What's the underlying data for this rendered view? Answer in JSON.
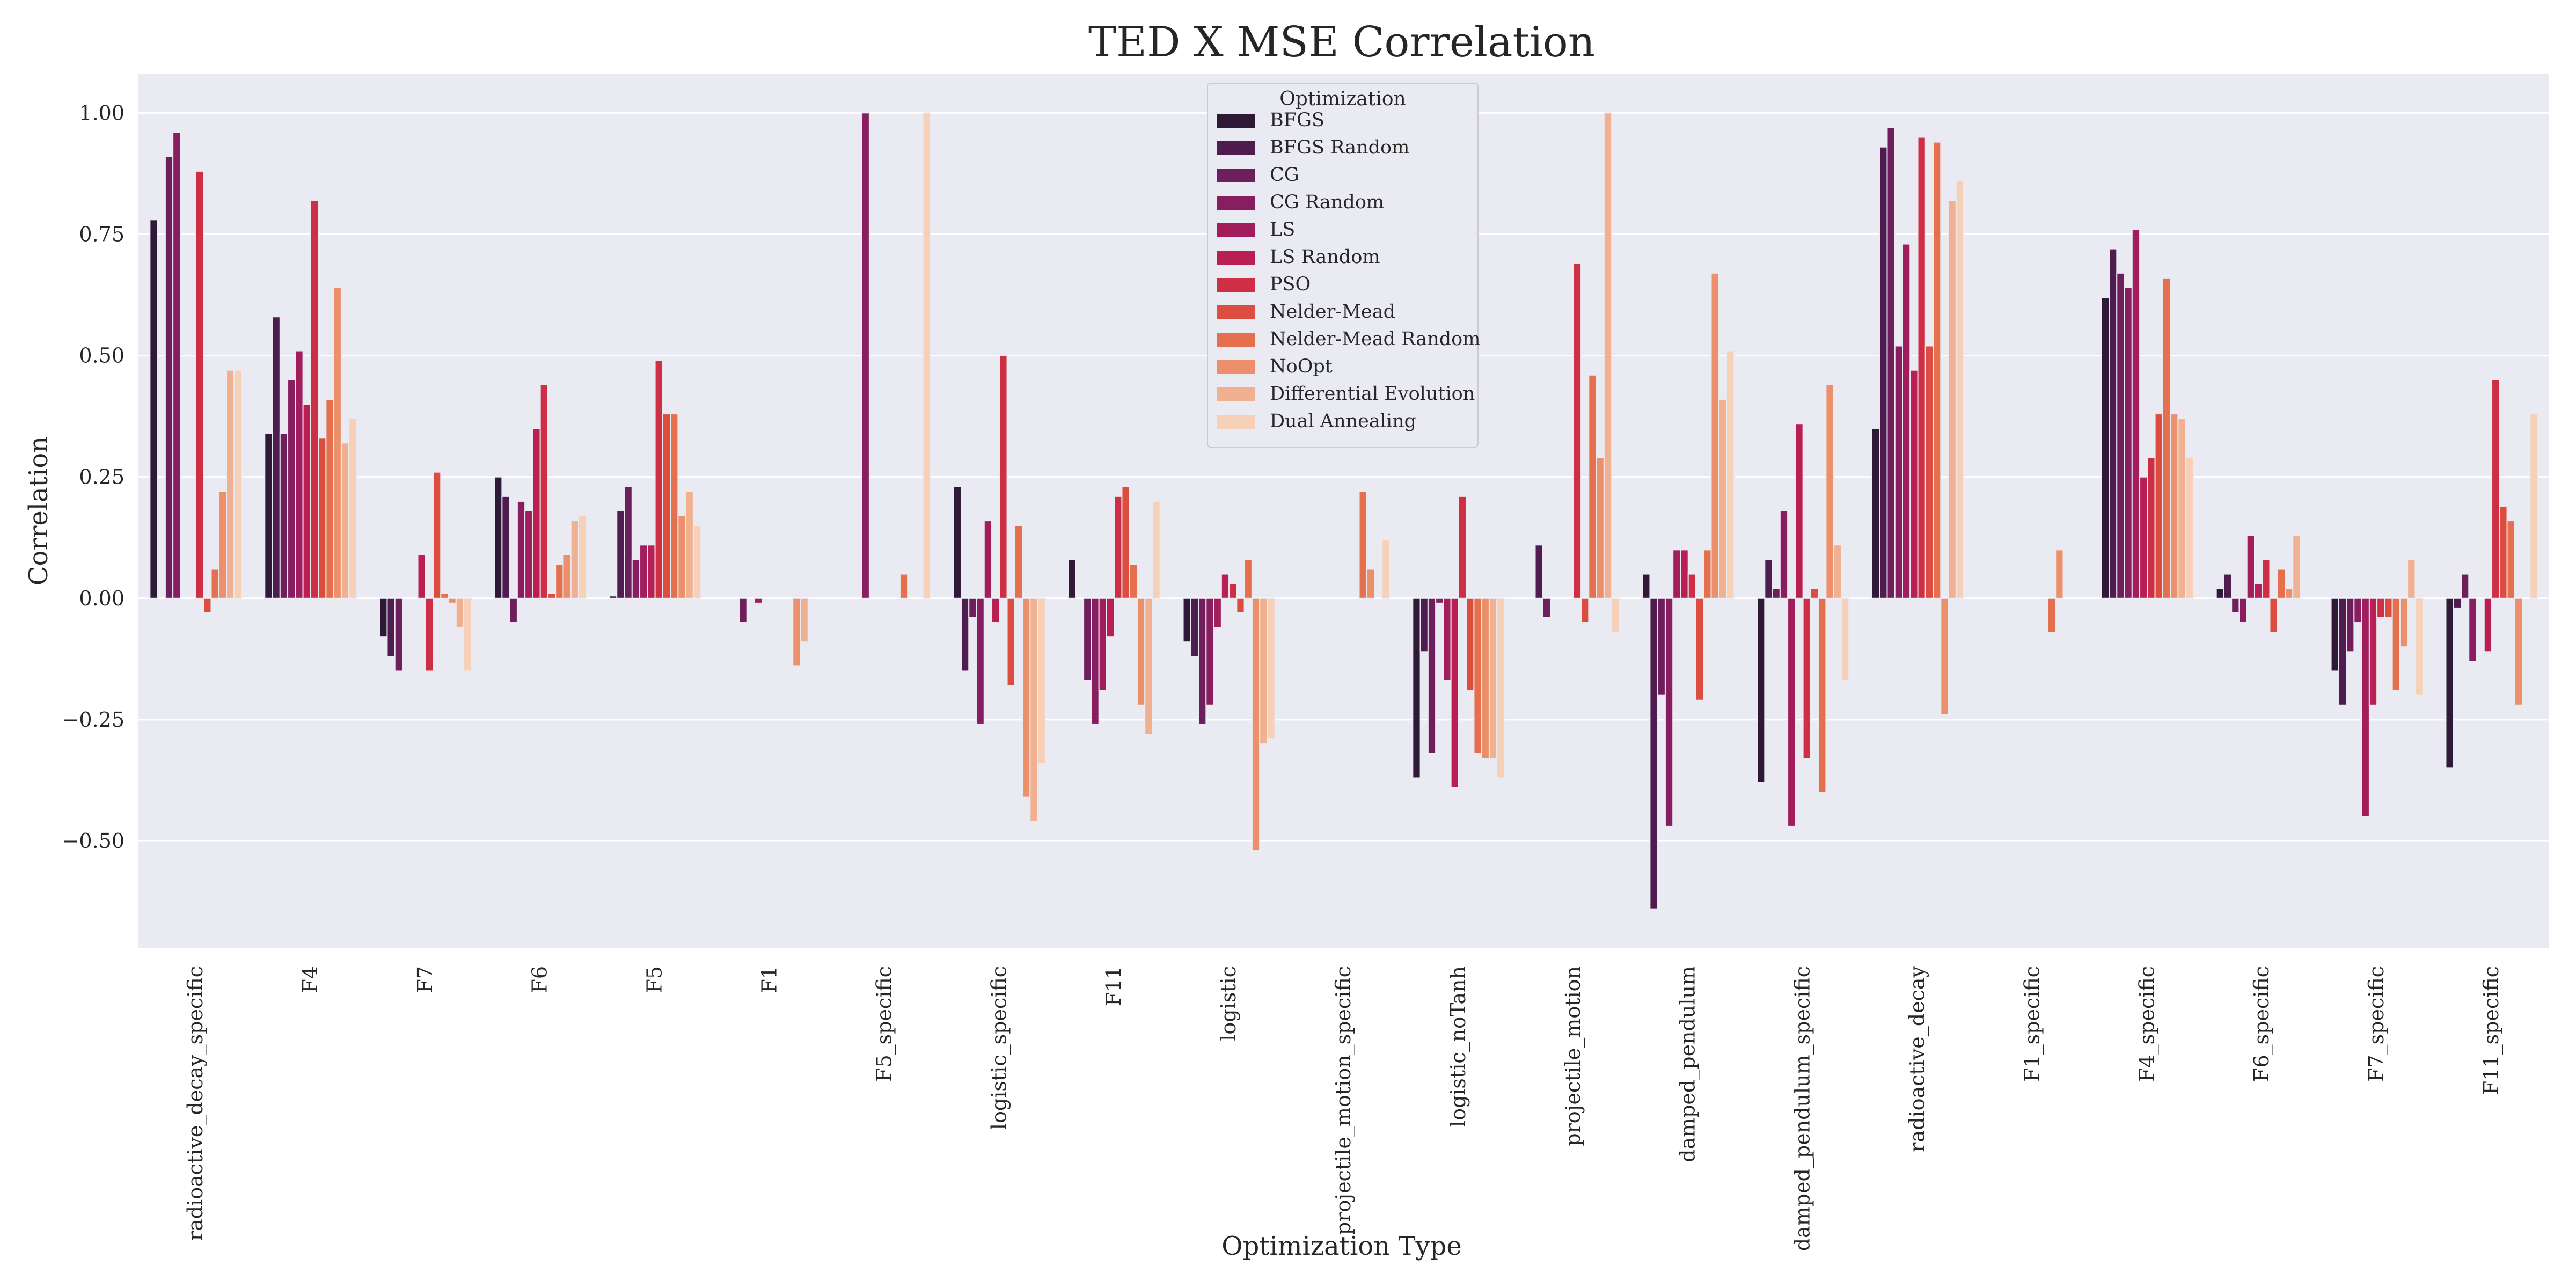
{
  "chart_data": {
    "type": "bar",
    "title": "TED X MSE Correlation",
    "xlabel": "Optimization Type",
    "ylabel": "Correlation",
    "ylim": [
      -0.72,
      1.08
    ],
    "yticks": [
      -0.5,
      -0.25,
      0.0,
      0.25,
      0.5,
      0.75,
      1.0
    ],
    "ytick_labels": [
      "−0.50",
      "−0.25",
      "0.00",
      "0.25",
      "0.50",
      "0.75",
      "1.00"
    ],
    "grid": true,
    "legend_title": "Optimization",
    "legend_position": "top-center",
    "categories": [
      "radioactive_decay_specific",
      "F4",
      "F7",
      "F6",
      "F5",
      "F1",
      "F5_specific",
      "logistic_specific",
      "F11",
      "logistic",
      "projectile_motion_specific",
      "logistic_noTanh",
      "projectile_motion",
      "damped_pendulum",
      "damped_pendulum_specific",
      "radioactive_decay",
      "F1_specific",
      "F4_specific",
      "F6_specific",
      "F7_specific",
      "F11_specific"
    ],
    "series": [
      {
        "name": "BFGS",
        "color": "#2e1a36",
        "values": [
          0.78,
          0.34,
          -0.08,
          0.25,
          0.005,
          0,
          0,
          0.23,
          0.08,
          -0.09,
          0,
          -0.37,
          0,
          0.05,
          -0.38,
          0.35,
          0,
          0.62,
          0.02,
          -0.15,
          -0.35
        ]
      },
      {
        "name": "BFGS Random",
        "color": "#4e1c4f",
        "values": [
          0,
          0.58,
          -0.12,
          0.21,
          0.18,
          0,
          0,
          -0.15,
          0,
          -0.12,
          0,
          -0.11,
          0.11,
          -0.64,
          0.08,
          0.93,
          0,
          0.72,
          0.05,
          -0.22,
          -0.02
        ]
      },
      {
        "name": "CG",
        "color": "#6d1e5b",
        "values": [
          0.91,
          0.34,
          -0.15,
          -0.05,
          0.23,
          -0.05,
          0,
          -0.04,
          -0.17,
          -0.26,
          0,
          -0.32,
          -0.04,
          -0.2,
          0.02,
          0.97,
          0,
          0.67,
          -0.03,
          -0.11,
          0.05
        ]
      },
      {
        "name": "CG Random",
        "color": "#881e5f",
        "values": [
          0.96,
          0.45,
          0,
          0.2,
          0.08,
          0,
          1.0,
          -0.26,
          -0.26,
          -0.22,
          0,
          -0.01,
          0,
          -0.47,
          0.18,
          0.52,
          0,
          0.64,
          -0.05,
          -0.05,
          -0.13
        ]
      },
      {
        "name": "LS",
        "color": "#a11d5c",
        "values": [
          0,
          0.51,
          0,
          0.18,
          0.11,
          -0.01,
          0,
          0.16,
          -0.19,
          -0.06,
          0,
          -0.17,
          0,
          0.1,
          -0.47,
          0.73,
          0,
          0.76,
          0.13,
          -0.45,
          0
        ]
      },
      {
        "name": "LS Random",
        "color": "#b91f53",
        "values": [
          0,
          0.4,
          0.09,
          0.35,
          0.11,
          0,
          0,
          -0.05,
          -0.08,
          0.05,
          0,
          -0.39,
          0,
          0.1,
          0.36,
          0.47,
          0,
          0.25,
          0.03,
          -0.22,
          -0.11
        ]
      },
      {
        "name": "PSO",
        "color": "#ce2f45",
        "values": [
          0.88,
          0.82,
          -0.15,
          0.44,
          0.49,
          0,
          0,
          0.5,
          0.21,
          0.03,
          0,
          0.21,
          0.69,
          0.05,
          -0.33,
          0.95,
          0,
          0.29,
          0.08,
          -0.04,
          0.45
        ]
      },
      {
        "name": "Nelder-Mead",
        "color": "#dc4d40",
        "values": [
          -0.03,
          0.33,
          0.26,
          0.01,
          0.38,
          0,
          0,
          -0.18,
          0.23,
          -0.03,
          0,
          -0.19,
          -0.05,
          -0.21,
          0.02,
          0.52,
          0,
          0.38,
          -0.07,
          -0.04,
          0.19
        ]
      },
      {
        "name": "Nelder-Mead Random",
        "color": "#e5704e",
        "values": [
          0.06,
          0.41,
          0.01,
          0.07,
          0.38,
          0,
          0.05,
          0.15,
          0.07,
          0.08,
          0.22,
          -0.32,
          0.46,
          0.1,
          -0.4,
          0.94,
          -0.07,
          0.66,
          0.06,
          -0.19,
          0.16
        ]
      },
      {
        "name": "NoOpt",
        "color": "#ec906b",
        "values": [
          0.22,
          0.64,
          -0.01,
          0.09,
          0.17,
          -0.14,
          0.0,
          -0.41,
          -0.22,
          -0.52,
          0.06,
          -0.33,
          0.29,
          0.67,
          0.44,
          -0.24,
          0.1,
          0.38,
          0.02,
          -0.1,
          -0.22
        ]
      },
      {
        "name": "Differential Evolution",
        "color": "#f1b08f",
        "values": [
          0.47,
          0.32,
          -0.06,
          0.16,
          0.22,
          -0.09,
          0,
          -0.46,
          -0.28,
          -0.3,
          0,
          -0.33,
          1.0,
          0.41,
          0.11,
          0.82,
          0,
          0.37,
          0.13,
          0.08,
          0
        ]
      },
      {
        "name": "Dual Annealing",
        "color": "#f6d1b8",
        "values": [
          0.47,
          0.37,
          -0.15,
          0.17,
          0.15,
          0,
          1.0,
          -0.34,
          0.2,
          -0.29,
          0.12,
          -0.37,
          -0.07,
          0.51,
          -0.17,
          0.86,
          0,
          0.29,
          0,
          -0.2,
          0.38
        ]
      }
    ]
  }
}
